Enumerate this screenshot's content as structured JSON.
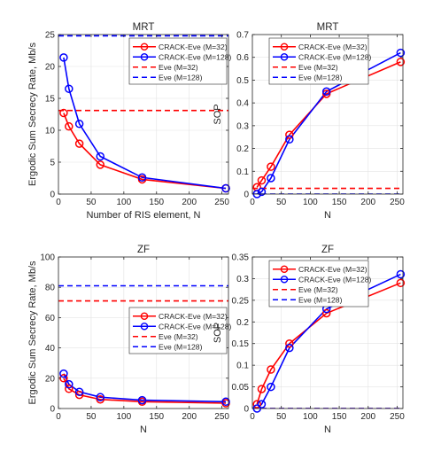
{
  "chart_data": [
    {
      "type": "line",
      "title": "MRT",
      "xlabel": "Number of RIS element, N",
      "ylabel": "Ergodic Sum Secrecy Rate,  Mb/s",
      "xlim": [
        0,
        260
      ],
      "ylim": [
        0,
        25
      ],
      "xticks": [
        0,
        50,
        100,
        150,
        200,
        250
      ],
      "yticks": [
        0,
        5,
        10,
        15,
        20,
        25
      ],
      "legend_position": "top-right",
      "series": [
        {
          "name": "CRACK-Eve (M=32)",
          "color": "#ff0000",
          "style": "solid",
          "marker": "circle",
          "x": [
            8,
            16,
            32,
            64,
            128,
            256
          ],
          "y": [
            12.7,
            10.6,
            7.9,
            4.6,
            2.3,
            0.9
          ]
        },
        {
          "name": "CRACK-Eve (M=128)",
          "color": "#0000ff",
          "style": "solid",
          "marker": "circle",
          "x": [
            8,
            16,
            32,
            64,
            128,
            256
          ],
          "y": [
            21.4,
            16.5,
            11.0,
            5.9,
            2.6,
            0.9
          ]
        },
        {
          "name": "Eve (M=32)",
          "color": "#ff0000",
          "style": "dashed",
          "marker": "none",
          "x": [
            0,
            260
          ],
          "y": [
            13.1,
            13.1
          ]
        },
        {
          "name": "Eve (M=128)",
          "color": "#0000ff",
          "style": "dashed",
          "marker": "none",
          "x": [
            0,
            260
          ],
          "y": [
            24.8,
            24.8
          ]
        }
      ]
    },
    {
      "type": "line",
      "title": "MRT",
      "xlabel": "N",
      "ylabel": "SOP",
      "xlim": [
        0,
        260
      ],
      "ylim": [
        0,
        0.7
      ],
      "xticks": [
        0,
        50,
        100,
        150,
        200,
        250
      ],
      "yticks": [
        0,
        0.1,
        0.2,
        0.3,
        0.4,
        0.5,
        0.6,
        0.7
      ],
      "legend_position": "top-left",
      "series": [
        {
          "name": "CRACK-Eve (M=32)",
          "color": "#ff0000",
          "style": "solid",
          "marker": "circle",
          "x": [
            8,
            16,
            32,
            64,
            128,
            256
          ],
          "y": [
            0.03,
            0.06,
            0.12,
            0.26,
            0.44,
            0.58
          ]
        },
        {
          "name": "CRACK-Eve (M=128)",
          "color": "#0000ff",
          "style": "solid",
          "marker": "circle",
          "x": [
            8,
            16,
            32,
            64,
            128,
            256
          ],
          "y": [
            0.0,
            0.01,
            0.07,
            0.24,
            0.45,
            0.62
          ]
        },
        {
          "name": "Eve (M=32)",
          "color": "#ff0000",
          "style": "dashed",
          "marker": "none",
          "x": [
            0,
            260
          ],
          "y": [
            0.025,
            0.025
          ]
        },
        {
          "name": "Eve (M=128)",
          "color": "#0000ff",
          "style": "dashed",
          "marker": "none",
          "x": [
            0,
            260
          ],
          "y": [
            0.0,
            0.0
          ]
        }
      ]
    },
    {
      "type": "line",
      "title": "ZF",
      "xlabel": "N",
      "ylabel": "Ergodic Sum Secrecy Rate,  Mb/s",
      "xlim": [
        0,
        260
      ],
      "ylim": [
        0,
        100
      ],
      "xticks": [
        0,
        50,
        100,
        150,
        200,
        250
      ],
      "yticks": [
        0,
        20,
        40,
        60,
        80,
        100
      ],
      "legend_position": "center-right",
      "series": [
        {
          "name": "CRACK-Eve (M=32)",
          "color": "#ff0000",
          "style": "solid",
          "marker": "circle",
          "x": [
            8,
            16,
            32,
            64,
            128,
            256
          ],
          "y": [
            20.0,
            13.0,
            9.0,
            6.0,
            4.5,
            3.5
          ]
        },
        {
          "name": "CRACK-Eve (M=128)",
          "color": "#0000ff",
          "style": "solid",
          "marker": "circle",
          "x": [
            8,
            16,
            32,
            64,
            128,
            256
          ],
          "y": [
            23.0,
            16.0,
            11.0,
            7.5,
            5.5,
            4.5
          ]
        },
        {
          "name": "Eve (M=32)",
          "color": "#ff0000",
          "style": "dashed",
          "marker": "none",
          "x": [
            0,
            260
          ],
          "y": [
            71.0,
            71.0
          ]
        },
        {
          "name": "Eve (M=128)",
          "color": "#0000ff",
          "style": "dashed",
          "marker": "none",
          "x": [
            0,
            260
          ],
          "y": [
            81.0,
            81.0
          ]
        }
      ]
    },
    {
      "type": "line",
      "title": "ZF",
      "xlabel": "N",
      "ylabel": "SOP",
      "xlim": [
        0,
        260
      ],
      "ylim": [
        0,
        0.35
      ],
      "xticks": [
        0,
        50,
        100,
        150,
        200,
        250
      ],
      "yticks": [
        0,
        0.05,
        0.1,
        0.15,
        0.2,
        0.25,
        0.3,
        0.35
      ],
      "legend_position": "top-left",
      "series": [
        {
          "name": "CRACK-Eve (M=32)",
          "color": "#ff0000",
          "style": "solid",
          "marker": "circle",
          "x": [
            8,
            16,
            32,
            64,
            128,
            256
          ],
          "y": [
            0.01,
            0.045,
            0.09,
            0.15,
            0.22,
            0.29
          ]
        },
        {
          "name": "CRACK-Eve (M=128)",
          "color": "#0000ff",
          "style": "solid",
          "marker": "circle",
          "x": [
            8,
            16,
            32,
            64,
            128,
            256
          ],
          "y": [
            0.0,
            0.01,
            0.05,
            0.14,
            0.23,
            0.31
          ]
        },
        {
          "name": "Eve (M=32)",
          "color": "#ff0000",
          "style": "dashed",
          "marker": "none",
          "x": [
            0,
            260
          ],
          "y": [
            0.0,
            0.0
          ]
        },
        {
          "name": "Eve (M=128)",
          "color": "#0000ff",
          "style": "dashed",
          "marker": "none",
          "x": [
            0,
            260
          ],
          "y": [
            0.0,
            0.0
          ]
        }
      ]
    }
  ]
}
